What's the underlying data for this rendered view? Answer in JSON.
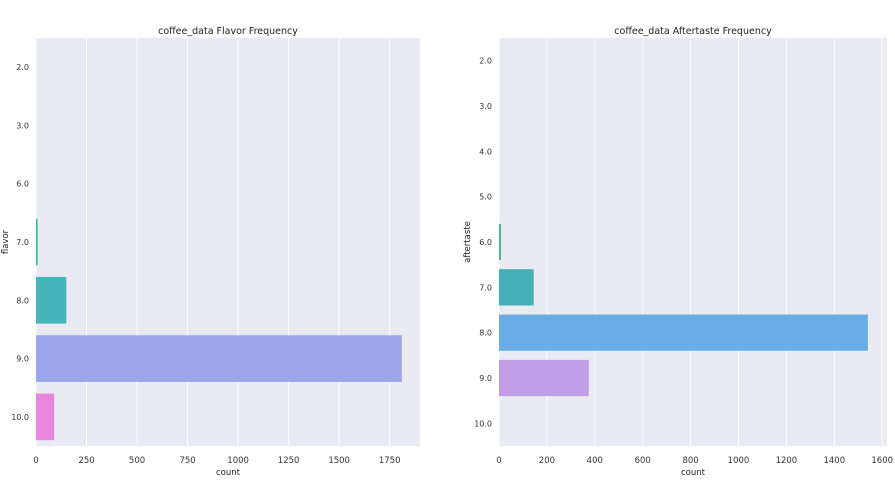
{
  "chart_data": [
    {
      "type": "bar",
      "orientation": "horizontal",
      "title": "coffee_data Flavor Frequency",
      "xlabel": "count",
      "ylabel": "flavor",
      "categories": [
        "2.0",
        "3.0",
        "6.0",
        "7.0",
        "8.0",
        "9.0",
        "10.0"
      ],
      "values": [
        0,
        0,
        0,
        8,
        150,
        1810,
        90
      ],
      "colors": [
        "#f08080",
        "#cdb44b",
        "#8fc05a",
        "#3cb796",
        "#46b4bb",
        "#9aa5ea",
        "#e786de"
      ],
      "xlim": [
        0,
        1900
      ],
      "xticks": [
        0,
        250,
        500,
        750,
        1000,
        1250,
        1500,
        1750
      ],
      "grid": true
    },
    {
      "type": "bar",
      "orientation": "horizontal",
      "title": "coffee_data Aftertaste Frequency",
      "xlabel": "count",
      "ylabel": "aftertaste",
      "categories": [
        "2.0",
        "3.0",
        "4.0",
        "5.0",
        "6.0",
        "7.0",
        "8.0",
        "9.0",
        "10.0"
      ],
      "values": [
        0,
        0,
        0,
        0,
        8,
        145,
        1540,
        375,
        0
      ],
      "colors": [
        "#f08080",
        "#d9a14a",
        "#b1b84a",
        "#72c057",
        "#3cb78a",
        "#46b0ba",
        "#6aade6",
        "#c39ee8",
        "#ea86cf"
      ],
      "xlim": [
        0,
        1620
      ],
      "xticks": [
        0,
        200,
        400,
        600,
        800,
        1000,
        1200,
        1400,
        1600
      ],
      "grid": true
    }
  ]
}
